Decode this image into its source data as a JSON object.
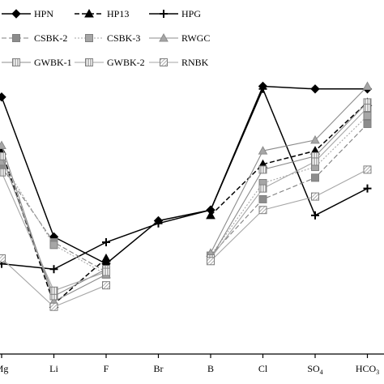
{
  "chart_data": {
    "type": "line",
    "categories": [
      "Mg",
      "Li",
      "F",
      "Br",
      "B",
      "Cl",
      "SO4",
      "HCO3"
    ],
    "category_labels": [
      {
        "base": "Mg",
        "sub": ""
      },
      {
        "base": "Li",
        "sub": ""
      },
      {
        "base": "F",
        "sub": ""
      },
      {
        "base": "Br",
        "sub": ""
      },
      {
        "base": "B",
        "sub": ""
      },
      {
        "base": "Cl",
        "sub": ""
      },
      {
        "base": "SO",
        "sub": "4"
      },
      {
        "base": "HCO",
        "sub": "3"
      }
    ],
    "series": [
      {
        "name": "HPN",
        "color": "#000000",
        "dash": "solid",
        "marker": "diamond",
        "marker_fill": "#000000",
        "values": [
          0.82,
          0.3,
          0.2,
          0.36,
          0.4,
          0.86,
          0.85,
          0.85
        ]
      },
      {
        "name": "HP13",
        "color": "#000000",
        "dash": "dashed",
        "marker": "triangle",
        "marker_fill": "#000000",
        "values": [
          0.62,
          0.05,
          0.22,
          null,
          0.38,
          0.57,
          0.62,
          0.8
        ]
      },
      {
        "name": "HPG",
        "color": "#000000",
        "dash": "solid",
        "marker": "plus",
        "marker_fill": "#000000",
        "values": [
          0.2,
          0.18,
          0.28,
          0.35,
          0.4,
          0.85,
          0.38,
          0.48
        ]
      },
      {
        "name": "CSBK-2",
        "color": "#7f7f7f",
        "dash": "dashed",
        "marker": "square",
        "marker_fill": "#8c8c8c",
        "values": [
          0.56,
          0.28,
          0.17,
          null,
          0.23,
          0.44,
          0.52,
          0.72
        ]
      },
      {
        "name": "CSBK-3",
        "color": "#a6a6a6",
        "dash": "dotted",
        "marker": "square",
        "marker_fill": "#a6a6a6",
        "values": [
          0.58,
          0.27,
          0.16,
          null,
          0.23,
          0.5,
          0.56,
          0.75
        ]
      },
      {
        "name": "RWGC",
        "color": "#8c8c8c",
        "dash": "solid",
        "marker": "triangle",
        "marker_fill": "#a6a6a6",
        "values": [
          0.64,
          0.06,
          0.16,
          null,
          0.24,
          0.62,
          0.66,
          0.86
        ]
      },
      {
        "name": "GWBK-1",
        "color": "#8c8c8c",
        "dash": "solid",
        "marker": "striped-square",
        "marker_fill": "#bfbfbf",
        "values": [
          0.6,
          0.08,
          0.18,
          null,
          0.22,
          0.55,
          0.6,
          0.8
        ]
      },
      {
        "name": "GWBK-2",
        "color": "#a6a6a6",
        "dash": "solid",
        "marker": "striped-square",
        "marker_fill": "#bfbfbf",
        "values": [
          0.54,
          0.1,
          0.17,
          null,
          0.22,
          0.48,
          0.58,
          0.78
        ]
      },
      {
        "name": "RNBK",
        "color": "#a6a6a6",
        "dash": "solid",
        "marker": "hatched-square",
        "marker_fill": "#d9d9d9",
        "values": [
          0.22,
          0.04,
          0.12,
          null,
          0.21,
          0.4,
          0.45,
          0.55
        ]
      }
    ],
    "ylim": [
      0,
      1
    ],
    "grid": false,
    "legend_position": "top",
    "title": "",
    "xlabel": "",
    "ylabel": ""
  }
}
